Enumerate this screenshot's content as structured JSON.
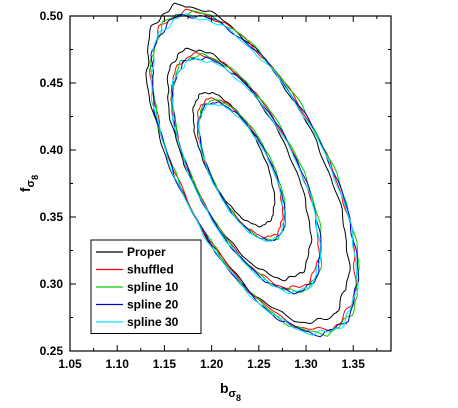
{
  "chart_data": {
    "type": "line",
    "title": "",
    "xlabel_main": "b",
    "xlabel_sub": "σ",
    "xlabel_subsub": "8",
    "ylabel_main": "f",
    "ylabel_sub": "σ",
    "ylabel_subsub": "8",
    "xlim": [
      1.05,
      1.39
    ],
    "ylim": [
      0.25,
      0.5
    ],
    "xticks": [
      1.05,
      1.1,
      1.15,
      1.2,
      1.25,
      1.3,
      1.35
    ],
    "xtick_labels": [
      "1.05",
      "1.10",
      "1.15",
      "1.20",
      "1.25",
      "1.30",
      "1.35"
    ],
    "yticks": [
      0.25,
      0.3,
      0.35,
      0.4,
      0.45,
      0.5
    ],
    "ytick_labels": [
      "0.25",
      "0.30",
      "0.35",
      "0.40",
      "0.45",
      "0.50"
    ],
    "grid": false,
    "legend_position": "bottom-left",
    "series": [
      {
        "name": "Proper",
        "color": "#000000",
        "contours": [
          {
            "cx": 1.2235,
            "cy": 0.3932,
            "a": 0.0598,
            "b": 0.0274,
            "theta_deg": -51.3
          },
          {
            "cx": 1.229,
            "cy": 0.3895,
            "a": 0.104,
            "b": 0.0475,
            "theta_deg": -50.4
          },
          {
            "cx": 1.238,
            "cy": 0.3895,
            "a": 0.144,
            "b": 0.0681,
            "theta_deg": -49.6
          }
        ]
      },
      {
        "name": "shuffled",
        "color": "#ff0000",
        "contours": [
          {
            "cx": 1.23,
            "cy": 0.3867,
            "a": 0.0623,
            "b": 0.0286,
            "theta_deg": -50.9
          },
          {
            "cx": 1.2355,
            "cy": 0.384,
            "a": 0.106,
            "b": 0.0488,
            "theta_deg": -50.0
          },
          {
            "cx": 1.2445,
            "cy": 0.3842,
            "a": 0.145,
            "b": 0.0689,
            "theta_deg": -49.3
          }
        ]
      },
      {
        "name": "spline 10",
        "color": "#00cc00",
        "contours": [
          {
            "cx": 1.2325,
            "cy": 0.3848,
            "a": 0.0631,
            "b": 0.0291,
            "theta_deg": -50.7
          },
          {
            "cx": 1.2375,
            "cy": 0.3825,
            "a": 0.1075,
            "b": 0.0495,
            "theta_deg": -49.8
          },
          {
            "cx": 1.246,
            "cy": 0.383,
            "a": 0.1465,
            "b": 0.0696,
            "theta_deg": -49.1
          }
        ]
      },
      {
        "name": "spline 20",
        "color": "#0000cc",
        "contours": [
          {
            "cx": 1.232,
            "cy": 0.384,
            "a": 0.0623,
            "b": 0.0287,
            "theta_deg": -50.5
          },
          {
            "cx": 1.237,
            "cy": 0.3815,
            "a": 0.1065,
            "b": 0.0491,
            "theta_deg": -49.7
          },
          {
            "cx": 1.2455,
            "cy": 0.382,
            "a": 0.1455,
            "b": 0.0693,
            "theta_deg": -49.0
          }
        ]
      },
      {
        "name": "spline 30",
        "color": "#00e5ff",
        "contours": [
          {
            "cx": 1.2315,
            "cy": 0.3832,
            "a": 0.0618,
            "b": 0.0285,
            "theta_deg": -50.4
          },
          {
            "cx": 1.2365,
            "cy": 0.3808,
            "a": 0.106,
            "b": 0.0488,
            "theta_deg": -49.6
          },
          {
            "cx": 1.245,
            "cy": 0.3814,
            "a": 0.145,
            "b": 0.069,
            "theta_deg": -48.9
          }
        ]
      }
    ]
  }
}
